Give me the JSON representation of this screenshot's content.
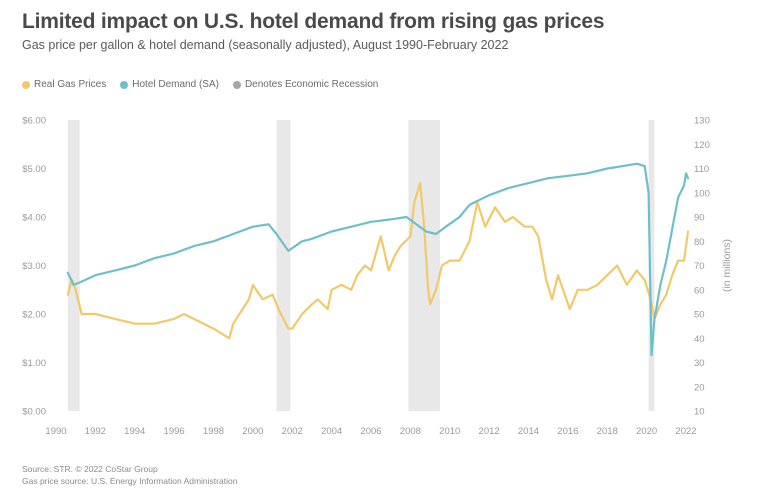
{
  "title": "Limited impact on U.S. hotel demand from rising gas prices",
  "subtitle": "Gas price per gallon & hotel demand (seasonally adjusted), August 1990-February 2022",
  "legend": [
    {
      "label": "Real Gas Prices",
      "color": "#f0c96a"
    },
    {
      "label": "Hotel Demand (SA)",
      "color": "#6dc0c8"
    },
    {
      "label": "Denotes Economic Recession",
      "color": "#a6a6a6"
    }
  ],
  "footer": {
    "source1": "Source: STR. © 2022 CoStar Group",
    "source2": "Gas price source: U.S. Energy Information Administration"
  },
  "chart_data": {
    "type": "line",
    "ylabel_right": "(in millions)",
    "y_left_ticks": [
      "$0.00",
      "$1.00",
      "$2.00",
      "$3.00",
      "$4.00",
      "$5.00",
      "$6.00"
    ],
    "y_left_range": [
      0,
      6
    ],
    "y_right_ticks": [
      "10",
      "20",
      "30",
      "40",
      "50",
      "60",
      "70",
      "80",
      "90",
      "100",
      "110",
      "120",
      "130"
    ],
    "y_right_range": [
      10,
      130
    ],
    "x_ticks": [
      "1990",
      "1992",
      "1994",
      "1996",
      "1998",
      "2000",
      "2002",
      "2004",
      "2006",
      "2008",
      "2010",
      "2012",
      "2014",
      "2016",
      "2018",
      "2020",
      "2022"
    ],
    "x_range": [
      1990,
      2022
    ],
    "grid": "off",
    "legend_position": "top-left",
    "recessions": [
      {
        "start": 1990.6,
        "end": 1991.2
      },
      {
        "start": 2001.2,
        "end": 2001.9
      },
      {
        "start": 2007.9,
        "end": 2009.5
      },
      {
        "start": 2020.1,
        "end": 2020.4
      }
    ],
    "series": [
      {
        "name": "Real Gas Prices",
        "color": "#f0c96a",
        "axis": "left",
        "x": [
          1990.6,
          1990.8,
          1991.0,
          1991.3,
          1992.0,
          1993.0,
          1994.0,
          1995.0,
          1996.0,
          1996.5,
          1997.0,
          1998.0,
          1998.8,
          1999.0,
          1999.8,
          2000.0,
          2000.5,
          2001.0,
          2001.3,
          2001.8,
          2002.0,
          2002.5,
          2003.0,
          2003.3,
          2003.8,
          2004.0,
          2004.5,
          2005.0,
          2005.3,
          2005.7,
          2006.0,
          2006.5,
          2006.9,
          2007.2,
          2007.5,
          2008.0,
          2008.2,
          2008.5,
          2008.7,
          2008.9,
          2009.0,
          2009.3,
          2009.6,
          2010.0,
          2010.5,
          2011.0,
          2011.4,
          2011.8,
          2012.3,
          2012.8,
          2013.2,
          2013.8,
          2014.2,
          2014.5,
          2014.9,
          2015.2,
          2015.5,
          2016.1,
          2016.5,
          2017.0,
          2017.5,
          2018.0,
          2018.5,
          2019.0,
          2019.5,
          2019.9,
          2020.2,
          2020.4,
          2020.7,
          2021.0,
          2021.3,
          2021.6,
          2021.9,
          2022.1
        ],
        "values": [
          2.4,
          2.7,
          2.5,
          2.0,
          2.0,
          1.9,
          1.8,
          1.8,
          1.9,
          2.0,
          1.9,
          1.7,
          1.5,
          1.8,
          2.3,
          2.6,
          2.3,
          2.4,
          2.1,
          1.7,
          1.7,
          2.0,
          2.2,
          2.3,
          2.1,
          2.5,
          2.6,
          2.5,
          2.8,
          3.0,
          2.9,
          3.6,
          2.9,
          3.2,
          3.4,
          3.6,
          4.3,
          4.7,
          3.8,
          2.5,
          2.2,
          2.5,
          3.0,
          3.1,
          3.1,
          3.5,
          4.3,
          3.8,
          4.2,
          3.9,
          4.0,
          3.8,
          3.8,
          3.6,
          2.7,
          2.3,
          2.8,
          2.1,
          2.5,
          2.5,
          2.6,
          2.8,
          3.0,
          2.6,
          2.9,
          2.7,
          2.3,
          1.9,
          2.2,
          2.4,
          2.8,
          3.1,
          3.1,
          3.7
        ]
      },
      {
        "name": "Hotel Demand (SA)",
        "color": "#6dc0c8",
        "axis": "right",
        "x": [
          1990.6,
          1990.9,
          1991.2,
          1992.0,
          1993.0,
          1994.0,
          1995.0,
          1996.0,
          1997.0,
          1998.0,
          1999.0,
          2000.0,
          2000.8,
          2001.2,
          2001.8,
          2002.5,
          2003.0,
          2004.0,
          2005.0,
          2006.0,
          2007.0,
          2007.8,
          2008.3,
          2008.8,
          2009.3,
          2009.8,
          2010.5,
          2011.0,
          2012.0,
          2013.0,
          2014.0,
          2015.0,
          2016.0,
          2017.0,
          2018.0,
          2018.8,
          2019.5,
          2019.9,
          2020.1,
          2020.25,
          2020.4,
          2020.7,
          2021.0,
          2021.3,
          2021.6,
          2021.9,
          2022.0,
          2022.1
        ],
        "values": [
          67,
          62,
          63,
          66,
          68,
          70,
          73,
          75,
          78,
          80,
          83,
          86,
          87,
          83,
          76,
          80,
          81,
          84,
          86,
          88,
          89,
          90,
          87,
          84,
          83,
          86,
          90,
          95,
          99,
          102,
          104,
          106,
          107,
          108,
          110,
          111,
          112,
          111,
          100,
          33,
          48,
          62,
          72,
          85,
          98,
          103,
          108,
          106
        ]
      }
    ]
  }
}
